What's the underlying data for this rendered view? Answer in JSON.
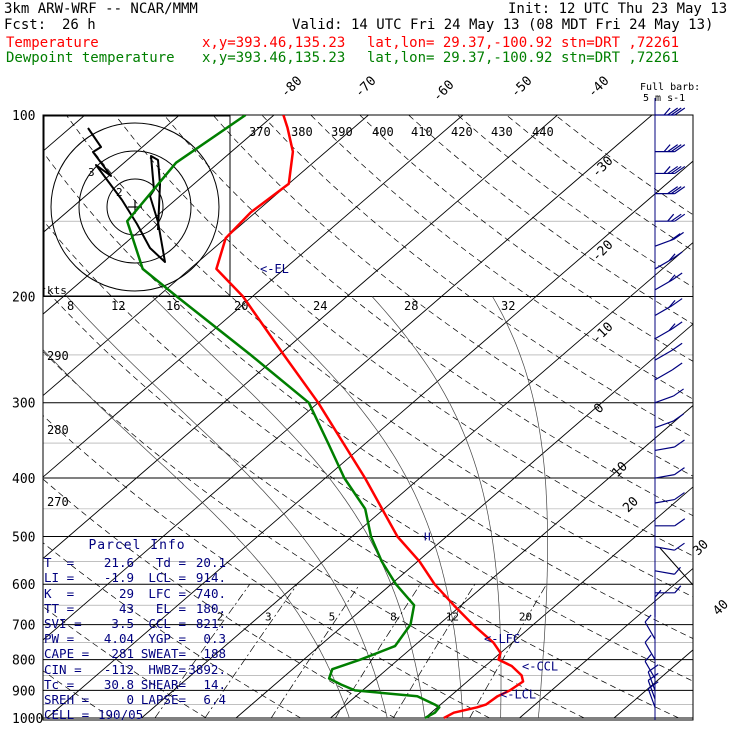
{
  "header": {
    "model": "3km ARW-WRF -- NCAR/MMM",
    "init": "Init: 12 UTC Thu 23 May 13",
    "fcst_label": "Fcst:",
    "fcst_value": "26 h",
    "valid": "Valid: 14 UTC Fri 24 May 13 (08 MDT Fri 24 May 13)",
    "temp_line": {
      "label": "Temperature",
      "xy": "x,y=393.46,135.23",
      "latlon": "lat,lon= 29.37,-100.92",
      "stn": "stn=DRT ,72261"
    },
    "dew_line": {
      "label": "Dewpoint temperature",
      "xy": "x,y=393.46,135.23",
      "latlon": "lat,lon= 29.37,-100.92",
      "stn": "stn=DRT ,72261"
    }
  },
  "colors": {
    "temperature": "#ff0000",
    "dewpoint": "#007f00",
    "annotation": "#00007f",
    "grid": "#000000"
  },
  "barb_legend": {
    "title": "Full barb:",
    "value": "5 m s-1"
  },
  "parcel": {
    "title": "Parcel Info",
    "rows": [
      [
        "T  =",
        "21.6",
        "Td =",
        "20.1"
      ],
      [
        "LI =",
        "-1.9",
        "LCL =",
        "914."
      ],
      [
        "K  =",
        "29",
        "LFC =",
        "740."
      ],
      [
        "TT =",
        "43",
        "EL =",
        "180."
      ],
      [
        "SVI =",
        "3.5",
        "CCL =",
        "821."
      ],
      [
        "PW =",
        "4.04",
        "YGP =",
        "0.3"
      ],
      [
        "CAPE =",
        "281",
        "SWEAT=",
        "188"
      ],
      [
        "CIN =",
        "-112",
        "HWBZ=",
        "3892."
      ],
      [
        "Tc =",
        "30.8",
        "SHEAR=",
        "14."
      ],
      [
        "SREH =",
        "0",
        "LAPSE=",
        "6.4"
      ],
      [
        "CELL =",
        "190/05",
        "",
        ""
      ]
    ]
  },
  "level_labels": {
    "el": "<-EL",
    "lfc": "<-LFC",
    "ccl": "<-CCL",
    "lcl": "<-LCL"
  },
  "chart_data": {
    "type": "line",
    "title": "",
    "xlabel": "",
    "ylabel": "",
    "pressure_ticks": [
      100,
      200,
      300,
      400,
      500,
      600,
      700,
      800,
      900,
      1000
    ],
    "pressure_range": [
      1000,
      100
    ],
    "isotherm_labels": [
      -80,
      -70,
      -60,
      -50,
      -40,
      -30,
      -20,
      -10,
      0,
      10,
      20,
      30,
      40
    ],
    "theta_labels": [
      370,
      380,
      390,
      400,
      410,
      420,
      430,
      440
    ],
    "theta_side_labels": [
      290,
      280,
      270
    ],
    "mixing_ratio_labels": [
      2,
      3,
      5,
      8,
      12,
      20
    ],
    "wind_scale_units": "kts",
    "wind_scale_labels": [
      8,
      12,
      16,
      20,
      24,
      28,
      32
    ],
    "hodograph_rings": [
      10,
      20,
      30
    ],
    "series": [
      {
        "name": "Temperature",
        "points": [
          [
            1000,
            22.0
          ],
          [
            980,
            22.4
          ],
          [
            960,
            24.2
          ],
          [
            950,
            24.8
          ],
          [
            920,
            25.0
          ],
          [
            900,
            25.6
          ],
          [
            870,
            25.9
          ],
          [
            850,
            25.0
          ],
          [
            820,
            22.8
          ],
          [
            800,
            20.6
          ],
          [
            780,
            20.0
          ],
          [
            750,
            18.0
          ],
          [
            700,
            13.6
          ],
          [
            650,
            9.2
          ],
          [
            600,
            4.6
          ],
          [
            550,
            0.2
          ],
          [
            500,
            -5.2
          ],
          [
            400,
            -15.8
          ],
          [
            300,
            -30.0
          ],
          [
            250,
            -39.5
          ],
          [
            200,
            -51.0
          ],
          [
            180,
            -57.2
          ],
          [
            160,
            -60.0
          ],
          [
            145,
            -60.5
          ],
          [
            130,
            -60.0
          ],
          [
            115,
            -63.5
          ],
          [
            105,
            -67.0
          ],
          [
            100,
            -69.0
          ]
        ]
      },
      {
        "name": "Dewpoint temperature",
        "points": [
          [
            1000,
            20.0
          ],
          [
            980,
            20.4
          ],
          [
            960,
            20.2
          ],
          [
            950,
            19.4
          ],
          [
            920,
            16.5
          ],
          [
            900,
            9.2
          ],
          [
            880,
            7.0
          ],
          [
            860,
            5.0
          ],
          [
            830,
            4.2
          ],
          [
            800,
            6.0
          ],
          [
            760,
            8.0
          ],
          [
            700,
            7.0
          ],
          [
            650,
            5.0
          ],
          [
            600,
            0.5
          ],
          [
            550,
            -3.8
          ],
          [
            500,
            -8.0
          ],
          [
            450,
            -12.0
          ],
          [
            400,
            -18.0
          ],
          [
            350,
            -24.0
          ],
          [
            300,
            -31.0
          ],
          [
            250,
            -43.0
          ],
          [
            200,
            -58.0
          ],
          [
            180,
            -65.0
          ],
          [
            150,
            -72.5
          ],
          [
            120,
            -74.5
          ],
          [
            100,
            -73.0
          ]
        ]
      }
    ],
    "wind_profile": [
      {
        "p": 100,
        "dir": 270,
        "spd": 35
      },
      {
        "p": 115,
        "dir": 270,
        "spd": 35
      },
      {
        "p": 125,
        "dir": 270,
        "spd": 35
      },
      {
        "p": 135,
        "dir": 270,
        "spd": 30
      },
      {
        "p": 150,
        "dir": 270,
        "spd": 25
      },
      {
        "p": 165,
        "dir": 250,
        "spd": 20
      },
      {
        "p": 180,
        "dir": 240,
        "spd": 15
      },
      {
        "p": 195,
        "dir": 240,
        "spd": 15
      },
      {
        "p": 215,
        "dir": 240,
        "spd": 15
      },
      {
        "p": 235,
        "dir": 240,
        "spd": 15
      },
      {
        "p": 255,
        "dir": 240,
        "spd": 10
      },
      {
        "p": 275,
        "dir": 240,
        "spd": 10
      },
      {
        "p": 300,
        "dir": 250,
        "spd": 10
      },
      {
        "p": 330,
        "dir": 250,
        "spd": 10
      },
      {
        "p": 360,
        "dir": 260,
        "spd": 10
      },
      {
        "p": 400,
        "dir": 260,
        "spd": 10
      },
      {
        "p": 440,
        "dir": 260,
        "spd": 10
      },
      {
        "p": 480,
        "dir": 270,
        "spd": 10
      },
      {
        "p": 520,
        "dir": 280,
        "spd": 10
      },
      {
        "p": 570,
        "dir": 280,
        "spd": 5
      },
      {
        "p": 620,
        "dir": 270,
        "spd": 5
      },
      {
        "p": 680,
        "dir": 180,
        "spd": 5
      },
      {
        "p": 740,
        "dir": 150,
        "spd": 5
      },
      {
        "p": 800,
        "dir": 150,
        "spd": 5
      },
      {
        "p": 860,
        "dir": 150,
        "spd": 5
      },
      {
        "p": 900,
        "dir": 160,
        "spd": 10
      },
      {
        "p": 930,
        "dir": 160,
        "spd": 10
      },
      {
        "p": 960,
        "dir": 160,
        "spd": 10
      }
    ]
  }
}
